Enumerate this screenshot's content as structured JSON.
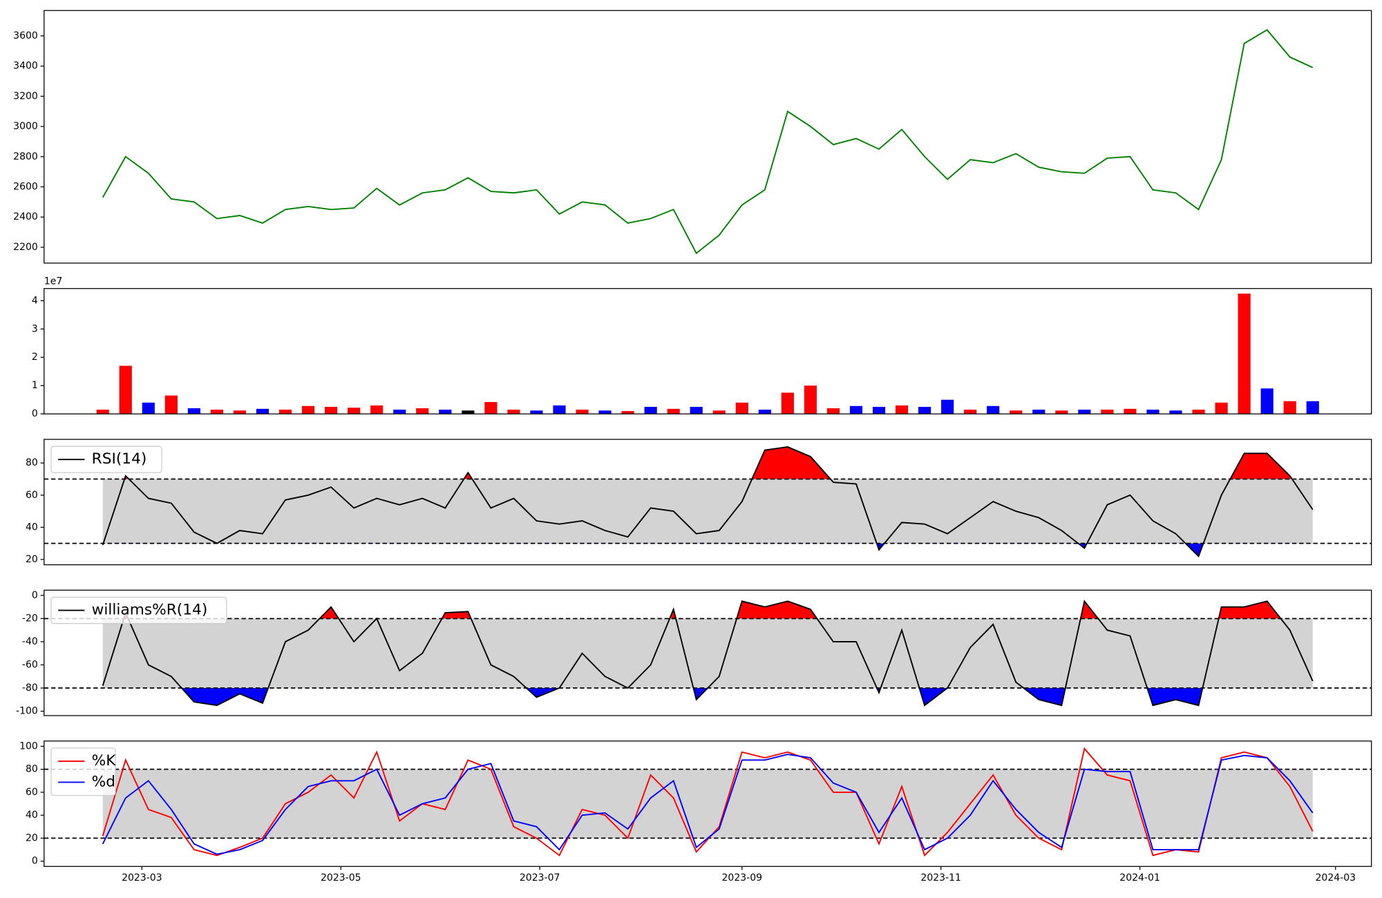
{
  "chart_data": [
    {
      "type": "line",
      "color": "#008000",
      "x": [
        "2023-02-17",
        "2023-02-24",
        "2023-03-03",
        "2023-03-10",
        "2023-03-17",
        "2023-03-24",
        "2023-03-31",
        "2023-04-07",
        "2023-04-14",
        "2023-04-21",
        "2023-04-28",
        "2023-05-05",
        "2023-05-12",
        "2023-05-19",
        "2023-05-26",
        "2023-06-02",
        "2023-06-09",
        "2023-06-16",
        "2023-06-23",
        "2023-06-30",
        "2023-07-07",
        "2023-07-14",
        "2023-07-21",
        "2023-07-28",
        "2023-08-04",
        "2023-08-11",
        "2023-08-18",
        "2023-08-25",
        "2023-09-01",
        "2023-09-08",
        "2023-09-15",
        "2023-09-22",
        "2023-09-29",
        "2023-10-06",
        "2023-10-13",
        "2023-10-20",
        "2023-10-27",
        "2023-11-03",
        "2023-11-10",
        "2023-11-17",
        "2023-11-24",
        "2023-12-01",
        "2023-12-08",
        "2023-12-15",
        "2023-12-22",
        "2023-12-29",
        "2024-01-05",
        "2024-01-12",
        "2024-01-19",
        "2024-01-26",
        "2024-02-02",
        "2024-02-09",
        "2024-02-16",
        "2024-02-23"
      ],
      "values": [
        2530,
        2800,
        2690,
        2520,
        2500,
        2390,
        2410,
        2360,
        2450,
        2470,
        2450,
        2460,
        2590,
        2480,
        2560,
        2580,
        2660,
        2570,
        2560,
        2580,
        2420,
        2500,
        2480,
        2360,
        2390,
        2450,
        2160,
        2280,
        2480,
        2580,
        3100,
        3000,
        2880,
        2920,
        2850,
        2980,
        2800,
        2650,
        2780,
        2760,
        2820,
        2730,
        2700,
        2690,
        2790,
        2800,
        2580,
        2560,
        2450,
        2780,
        3550,
        3640,
        3460,
        3390
      ],
      "xlim": [
        "2023-01-30",
        "2024-03-12"
      ],
      "ylim": [
        2095,
        3768
      ],
      "yticks": [
        2200,
        2400,
        2600,
        2800,
        3000,
        3200,
        3400,
        3600
      ]
    },
    {
      "type": "bar",
      "offset_label": "1e7",
      "x": [
        "2023-02-17",
        "2023-02-24",
        "2023-03-03",
        "2023-03-10",
        "2023-03-17",
        "2023-03-24",
        "2023-03-31",
        "2023-04-07",
        "2023-04-14",
        "2023-04-21",
        "2023-04-28",
        "2023-05-05",
        "2023-05-12",
        "2023-05-19",
        "2023-05-26",
        "2023-06-02",
        "2023-06-09",
        "2023-06-16",
        "2023-06-23",
        "2023-06-30",
        "2023-07-07",
        "2023-07-14",
        "2023-07-21",
        "2023-07-28",
        "2023-08-04",
        "2023-08-11",
        "2023-08-18",
        "2023-08-25",
        "2023-09-01",
        "2023-09-08",
        "2023-09-15",
        "2023-09-22",
        "2023-09-29",
        "2023-10-06",
        "2023-10-13",
        "2023-10-20",
        "2023-10-27",
        "2023-11-03",
        "2023-11-10",
        "2023-11-17",
        "2023-11-24",
        "2023-12-01",
        "2023-12-08",
        "2023-12-15",
        "2023-12-22",
        "2023-12-29",
        "2024-01-05",
        "2024-01-12",
        "2024-01-19",
        "2024-01-26",
        "2024-02-02",
        "2024-02-09",
        "2024-02-16",
        "2024-02-23"
      ],
      "values": [
        1500000,
        17000000,
        4000000,
        6500000,
        2000000,
        1500000,
        1200000,
        1800000,
        1500000,
        2800000,
        2500000,
        2200000,
        3000000,
        1500000,
        2000000,
        1500000,
        1200000,
        4200000,
        1500000,
        1200000,
        3000000,
        1500000,
        1200000,
        1000000,
        2500000,
        1800000,
        2500000,
        1200000,
        4000000,
        1500000,
        7500000,
        10000000,
        2000000,
        2800000,
        2500000,
        3000000,
        2500000,
        5000000,
        1500000,
        2800000,
        1200000,
        1500000,
        1200000,
        1500000,
        1500000,
        1800000,
        1500000,
        1200000,
        1500000,
        4000000,
        42500000,
        9000000,
        4500000,
        4500000
      ],
      "colors": [
        "red",
        "red",
        "blue",
        "red",
        "blue",
        "red",
        "red",
        "blue",
        "red",
        "red",
        "red",
        "red",
        "red",
        "blue",
        "red",
        "blue",
        "black",
        "red",
        "red",
        "blue",
        "blue",
        "red",
        "blue",
        "red",
        "blue",
        "red",
        "blue",
        "red",
        "red",
        "blue",
        "red",
        "red",
        "red",
        "blue",
        "blue",
        "red",
        "blue",
        "blue",
        "red",
        "blue",
        "red",
        "blue",
        "red",
        "blue",
        "red",
        "red",
        "blue",
        "blue",
        "red",
        "red",
        "red",
        "blue",
        "red",
        "blue"
      ],
      "xlim": [
        "2023-01-30",
        "2024-03-12"
      ],
      "ylim": [
        0,
        44300000
      ],
      "yticks": [
        0,
        {
          "value": 10000000,
          "label": "1"
        },
        {
          "value": 20000000,
          "label": "2"
        },
        {
          "value": 30000000,
          "label": "3"
        },
        {
          "value": 40000000,
          "label": "4"
        }
      ]
    },
    {
      "type": "line",
      "legend": "upper left",
      "fill_extremes": true,
      "x": [
        "2023-02-17",
        "2023-02-24",
        "2023-03-03",
        "2023-03-10",
        "2023-03-17",
        "2023-03-24",
        "2023-03-31",
        "2023-04-07",
        "2023-04-14",
        "2023-04-21",
        "2023-04-28",
        "2023-05-05",
        "2023-05-12",
        "2023-05-19",
        "2023-05-26",
        "2023-06-02",
        "2023-06-09",
        "2023-06-16",
        "2023-06-23",
        "2023-06-30",
        "2023-07-07",
        "2023-07-14",
        "2023-07-21",
        "2023-07-28",
        "2023-08-04",
        "2023-08-11",
        "2023-08-18",
        "2023-08-25",
        "2023-09-01",
        "2023-09-08",
        "2023-09-15",
        "2023-09-22",
        "2023-09-29",
        "2023-10-06",
        "2023-10-13",
        "2023-10-20",
        "2023-10-27",
        "2023-11-03",
        "2023-11-10",
        "2023-11-17",
        "2023-11-24",
        "2023-12-01",
        "2023-12-08",
        "2023-12-15",
        "2023-12-22",
        "2023-12-29",
        "2024-01-05",
        "2024-01-12",
        "2024-01-19",
        "2024-01-26",
        "2024-02-02",
        "2024-02-09",
        "2024-02-16",
        "2024-02-23"
      ],
      "series": [
        {
          "name": "RSI(14)",
          "color": "#000000",
          "values": [
            29,
            72,
            58,
            55,
            37,
            30,
            38,
            36,
            57,
            60,
            65,
            52,
            58,
            54,
            58,
            52,
            74,
            52,
            58,
            44,
            42,
            44,
            38,
            34,
            52,
            50,
            36,
            38,
            56,
            88,
            90,
            84,
            68,
            67,
            26,
            43,
            42,
            36,
            46,
            56,
            50,
            46,
            38,
            27,
            54,
            60,
            44,
            36,
            22,
            60,
            86,
            86,
            72,
            51
          ]
        }
      ],
      "thresholds": {
        "upper": 70,
        "lower": 30
      },
      "band_color": "#d3d3d3",
      "upper_color": "red",
      "lower_color": "blue",
      "xlim": [
        "2023-01-30",
        "2024-03-12"
      ],
      "ylim": [
        16.7,
        94.7
      ],
      "yticks": [
        20,
        40,
        60,
        80
      ]
    },
    {
      "type": "line",
      "legend": "upper left",
      "fill_extremes": true,
      "x": [
        "2023-02-17",
        "2023-02-24",
        "2023-03-03",
        "2023-03-10",
        "2023-03-17",
        "2023-03-24",
        "2023-03-31",
        "2023-04-07",
        "2023-04-14",
        "2023-04-21",
        "2023-04-28",
        "2023-05-05",
        "2023-05-12",
        "2023-05-19",
        "2023-05-26",
        "2023-06-02",
        "2023-06-09",
        "2023-06-16",
        "2023-06-23",
        "2023-06-30",
        "2023-07-07",
        "2023-07-14",
        "2023-07-21",
        "2023-07-28",
        "2023-08-04",
        "2023-08-11",
        "2023-08-18",
        "2023-08-25",
        "2023-09-01",
        "2023-09-08",
        "2023-09-15",
        "2023-09-22",
        "2023-09-29",
        "2023-10-06",
        "2023-10-13",
        "2023-10-20",
        "2023-10-27",
        "2023-11-03",
        "2023-11-10",
        "2023-11-17",
        "2023-11-24",
        "2023-12-01",
        "2023-12-08",
        "2023-12-15",
        "2023-12-22",
        "2023-12-29",
        "2024-01-05",
        "2024-01-12",
        "2024-01-19",
        "2024-01-26",
        "2024-02-02",
        "2024-02-09",
        "2024-02-16",
        "2024-02-23"
      ],
      "series": [
        {
          "name": "williams%R(14)",
          "color": "#000000",
          "values": [
            -78,
            -15,
            -60,
            -70,
            -92,
            -95,
            -85,
            -93,
            -40,
            -30,
            -10,
            -40,
            -20,
            -65,
            -50,
            -15,
            -14,
            -60,
            -70,
            -88,
            -80,
            -50,
            -70,
            -80,
            -60,
            -12,
            -90,
            -70,
            -5,
            -10,
            -5,
            -12,
            -40,
            -40,
            -84,
            -30,
            -95,
            -80,
            -45,
            -25,
            -75,
            -90,
            -95,
            -5,
            -30,
            -35,
            -95,
            -90,
            -95,
            -10,
            -10,
            -5,
            -30,
            -74
          ]
        }
      ],
      "thresholds": {
        "upper": -20,
        "lower": -80
      },
      "band_color": "#d3d3d3",
      "upper_color": "red",
      "lower_color": "blue",
      "xlim": [
        "2023-01-30",
        "2024-03-12"
      ],
      "ylim": [
        -103.8,
        4.5
      ],
      "yticks": [
        -100,
        -80,
        -60,
        -40,
        -20,
        0
      ]
    },
    {
      "type": "line",
      "legend": "upper left",
      "x": [
        "2023-02-17",
        "2023-02-24",
        "2023-03-03",
        "2023-03-10",
        "2023-03-17",
        "2023-03-24",
        "2023-03-31",
        "2023-04-07",
        "2023-04-14",
        "2023-04-21",
        "2023-04-28",
        "2023-05-05",
        "2023-05-12",
        "2023-05-19",
        "2023-05-26",
        "2023-06-02",
        "2023-06-09",
        "2023-06-16",
        "2023-06-23",
        "2023-06-30",
        "2023-07-07",
        "2023-07-14",
        "2023-07-21",
        "2023-07-28",
        "2023-08-04",
        "2023-08-11",
        "2023-08-18",
        "2023-08-25",
        "2023-09-01",
        "2023-09-08",
        "2023-09-15",
        "2023-09-22",
        "2023-09-29",
        "2023-10-06",
        "2023-10-13",
        "2023-10-20",
        "2023-10-27",
        "2023-11-03",
        "2023-11-10",
        "2023-11-17",
        "2023-11-24",
        "2023-12-01",
        "2023-12-08",
        "2023-12-15",
        "2023-12-22",
        "2023-12-29",
        "2024-01-05",
        "2024-01-12",
        "2024-01-19",
        "2024-01-26",
        "2024-02-02",
        "2024-02-09",
        "2024-02-16",
        "2024-02-23"
      ],
      "series": [
        {
          "name": "%K",
          "color": "red",
          "values": [
            22,
            88,
            45,
            38,
            10,
            5,
            12,
            20,
            50,
            60,
            75,
            55,
            95,
            35,
            50,
            45,
            88,
            80,
            30,
            20,
            5,
            45,
            40,
            20,
            75,
            55,
            8,
            30,
            95,
            90,
            95,
            88,
            60,
            60,
            15,
            65,
            5,
            25,
            50,
            75,
            40,
            20,
            10,
            98,
            75,
            70,
            5,
            10,
            8,
            90,
            95,
            90,
            65,
            26
          ]
        },
        {
          "name": "%d",
          "color": "blue",
          "values": [
            15,
            55,
            70,
            45,
            15,
            6,
            10,
            18,
            45,
            65,
            70,
            70,
            80,
            40,
            50,
            55,
            80,
            85,
            35,
            30,
            10,
            40,
            42,
            28,
            55,
            70,
            12,
            28,
            88,
            88,
            93,
            90,
            68,
            60,
            25,
            55,
            10,
            20,
            40,
            70,
            45,
            25,
            12,
            80,
            78,
            78,
            10,
            10,
            10,
            88,
            92,
            90,
            70,
            42
          ]
        }
      ],
      "thresholds": {
        "upper": 80,
        "lower": 20
      },
      "band_color": "#d3d3d3",
      "xlim": [
        "2023-01-30",
        "2024-03-12"
      ],
      "ylim": [
        -4.6,
        104.6
      ],
      "yticks": [
        0,
        20,
        40,
        60,
        80,
        100
      ],
      "xticks": [
        {
          "value": "2023-03-01",
          "label": "2023-03"
        },
        {
          "value": "2023-05-01",
          "label": "2023-05"
        },
        {
          "value": "2023-07-01",
          "label": "2023-07"
        },
        {
          "value": "2023-09-01",
          "label": "2023-09"
        },
        {
          "value": "2023-11-01",
          "label": "2023-11"
        },
        {
          "value": "2024-01-01",
          "label": "2024-01"
        },
        {
          "value": "2024-03-01",
          "label": "2024-03"
        }
      ]
    }
  ]
}
